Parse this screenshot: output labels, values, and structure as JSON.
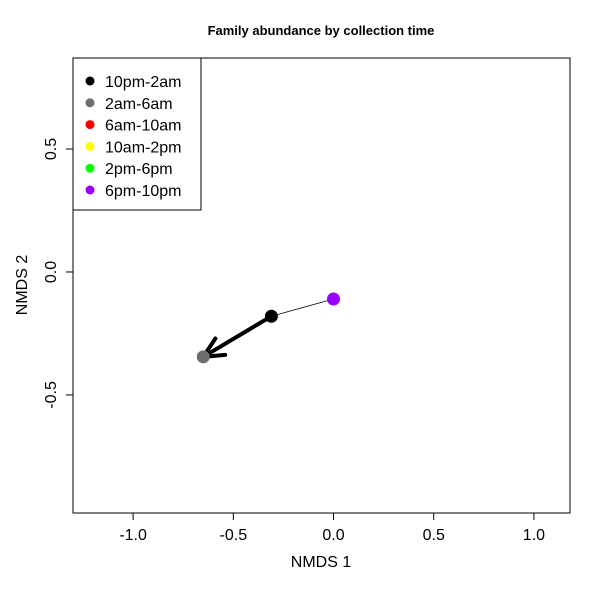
{
  "chart_data": {
    "type": "scatter",
    "title": "Family abundance by collection time",
    "xlabel": "NMDS 1",
    "ylabel": "NMDS 2",
    "xlim": [
      -1.3,
      1.18
    ],
    "ylim": [
      -0.98,
      0.87
    ],
    "x_ticks": [
      -1.0,
      -0.5,
      0.0,
      0.5,
      1.0
    ],
    "x_tick_labels": [
      "-1.0",
      "-0.5",
      "0.0",
      "0.5",
      "1.0"
    ],
    "y_ticks": [
      0.5,
      0.0,
      -0.5
    ],
    "y_tick_labels": [
      "0.5",
      "0.0",
      "-0.5"
    ],
    "grid": false,
    "legend_position": "top-left",
    "legend": [
      {
        "label": "10pm-2am",
        "color": "#000000"
      },
      {
        "label": "2am-6am",
        "color": "#6e6e6e"
      },
      {
        "label": "6am-10am",
        "color": "#ff0000"
      },
      {
        "label": "10am-2pm",
        "color": "#ffff00"
      },
      {
        "label": "2pm-6pm",
        "color": "#00ff00"
      },
      {
        "label": "6pm-10pm",
        "color": "#9b00ff"
      }
    ],
    "points": [
      {
        "series": "6pm-10pm",
        "x": 0.0,
        "y": -0.11,
        "color": "#9b00ff"
      },
      {
        "series": "10pm-2am",
        "x": -0.31,
        "y": -0.18,
        "color": "#000000"
      },
      {
        "series": "2am-6am",
        "x": -0.65,
        "y": -0.345,
        "color": "#6e6e6e"
      }
    ],
    "path": [
      {
        "from": "6pm-10pm",
        "to": "10pm-2am",
        "style": "thin-line"
      },
      {
        "from": "10pm-2am",
        "to": "2am-6am",
        "style": "thick-arrow"
      }
    ]
  }
}
